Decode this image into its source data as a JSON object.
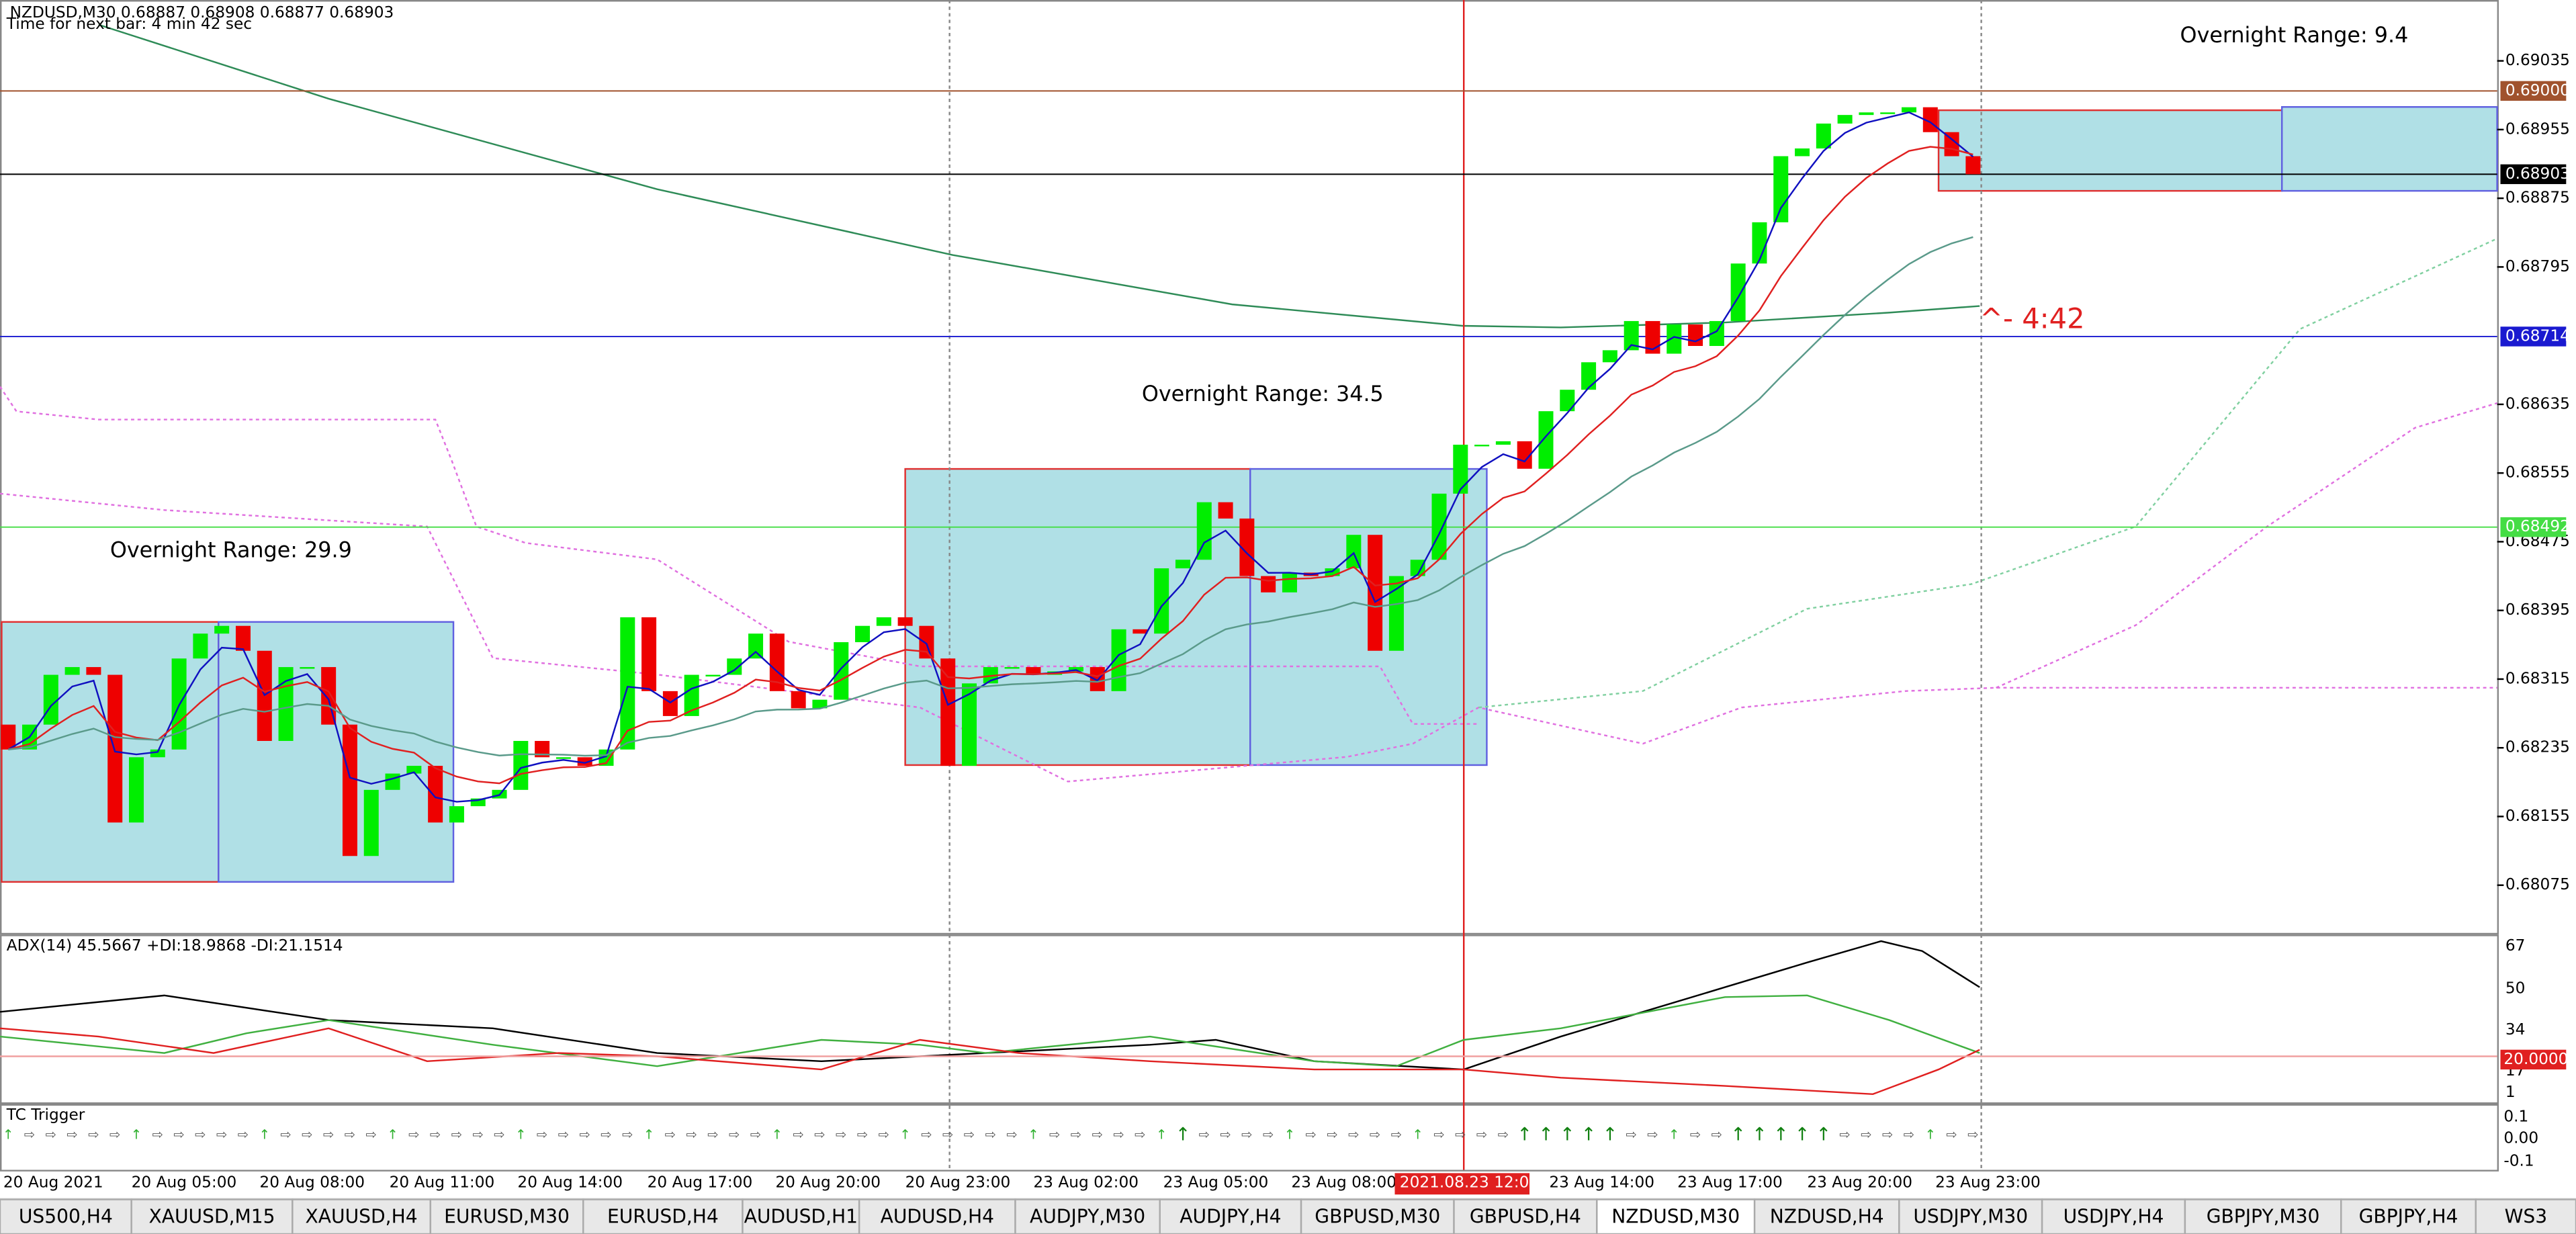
{
  "header": {
    "symbol_line": "NZDUSD,M30  0.68887 0.68908 0.68877 0.68903",
    "timer": "Time for next bar: 4 min 42 sec"
  },
  "annotations": [
    "Overnight Range: 29.9",
    "Overnight Range: 34.5",
    "Overnight Range: 9.4"
  ],
  "countdown": "^- 4:42",
  "price_axis": {
    "ticks": [
      "0.69035",
      "0.68955",
      "0.68875",
      "0.68795",
      "0.68635",
      "0.68555",
      "0.68475",
      "0.68395",
      "0.68315",
      "0.68235",
      "0.68155",
      "0.68075"
    ],
    "markers": [
      {
        "label": "0.69000",
        "color": "#a0522d"
      },
      {
        "label": "0.68903",
        "color": "#000000"
      },
      {
        "label": "0.68714",
        "color": "#1a1ad0"
      },
      {
        "label": "0.68492",
        "color": "#44dd44"
      }
    ]
  },
  "candles": {
    "first_open": 0.68262,
    "closes": [
      0.68233,
      0.68262,
      0.6832,
      0.68329,
      0.6832,
      0.68148,
      0.68224,
      0.68233,
      0.68339,
      0.68368,
      0.68377,
      0.68348,
      0.68243,
      0.68329,
      0.68329,
      0.68262,
      0.68109,
      0.68186,
      0.68205,
      0.68214,
      0.68148,
      0.68167,
      0.68176,
      0.68186,
      0.68243,
      0.68224,
      0.68224,
      0.68214,
      0.68233,
      0.68387,
      0.68301,
      0.68272,
      0.6832,
      0.6832,
      0.68339,
      0.68368,
      0.68301,
      0.68281,
      0.68291,
      0.68358,
      0.68377,
      0.68387,
      0.68377,
      0.68339,
      0.68214,
      0.6831,
      0.68329,
      0.68329,
      0.6832,
      0.68324,
      0.68329,
      0.68301,
      0.68373,
      0.68368,
      0.68444,
      0.68454,
      0.68521,
      0.68502,
      0.68435,
      0.68416,
      0.68439,
      0.68435,
      0.68444,
      0.68483,
      0.68348,
      0.68435,
      0.68454,
      0.68531,
      0.68588,
      0.68588,
      0.68592,
      0.6856,
      0.68627,
      0.68652,
      0.68684,
      0.68698,
      0.68732,
      0.68694,
      0.68728,
      0.68703,
      0.68732,
      0.68799,
      0.68847,
      0.68924,
      0.68933,
      0.68962,
      0.68972,
      0.68975,
      0.68975,
      0.68981,
      0.68952,
      0.68924,
      0.68903
    ]
  },
  "adx": {
    "title": "ADX(14) 45.5667 +DI:18.9868 -DI:21.1514",
    "axis": [
      "67",
      "50",
      "34",
      "17",
      "1"
    ],
    "level": "20.0000"
  },
  "tc": {
    "title": "TC Trigger",
    "axis": [
      "0.1",
      "0.00",
      "-0.1"
    ]
  },
  "time_axis": [
    "20 Aug 2021",
    "20 Aug 05:00",
    "20 Aug 08:00",
    "20 Aug 11:00",
    "20 Aug 14:00",
    "20 Aug 17:00",
    "20 Aug 20:00",
    "20 Aug 23:00",
    "23 Aug 02:00",
    "23 Aug 05:00",
    "23 Aug 08:00",
    "23 Aug 14:00",
    "23 Aug 17:00",
    "23 Aug 20:00",
    "23 Aug 23:00"
  ],
  "highlighted_time": "2021.08.23 12:00",
  "tabs": [
    "US500,H4",
    "XAUUSD,M15",
    "XAUUSD,H4",
    "EURUSD,M30",
    "EURUSD,H4",
    "AUDUSD,H1",
    "AUDUSD,H4",
    "AUDJPY,M30",
    "AUDJPY,H4",
    "GBPUSD,M30",
    "GBPUSD,H4",
    "NZDUSD,M30",
    "NZDUSD,H4",
    "USDJPY,M30",
    "USDJPY,H4",
    "GBPJPY,M30",
    "GBPJPY,H4",
    "WS3"
  ]
}
